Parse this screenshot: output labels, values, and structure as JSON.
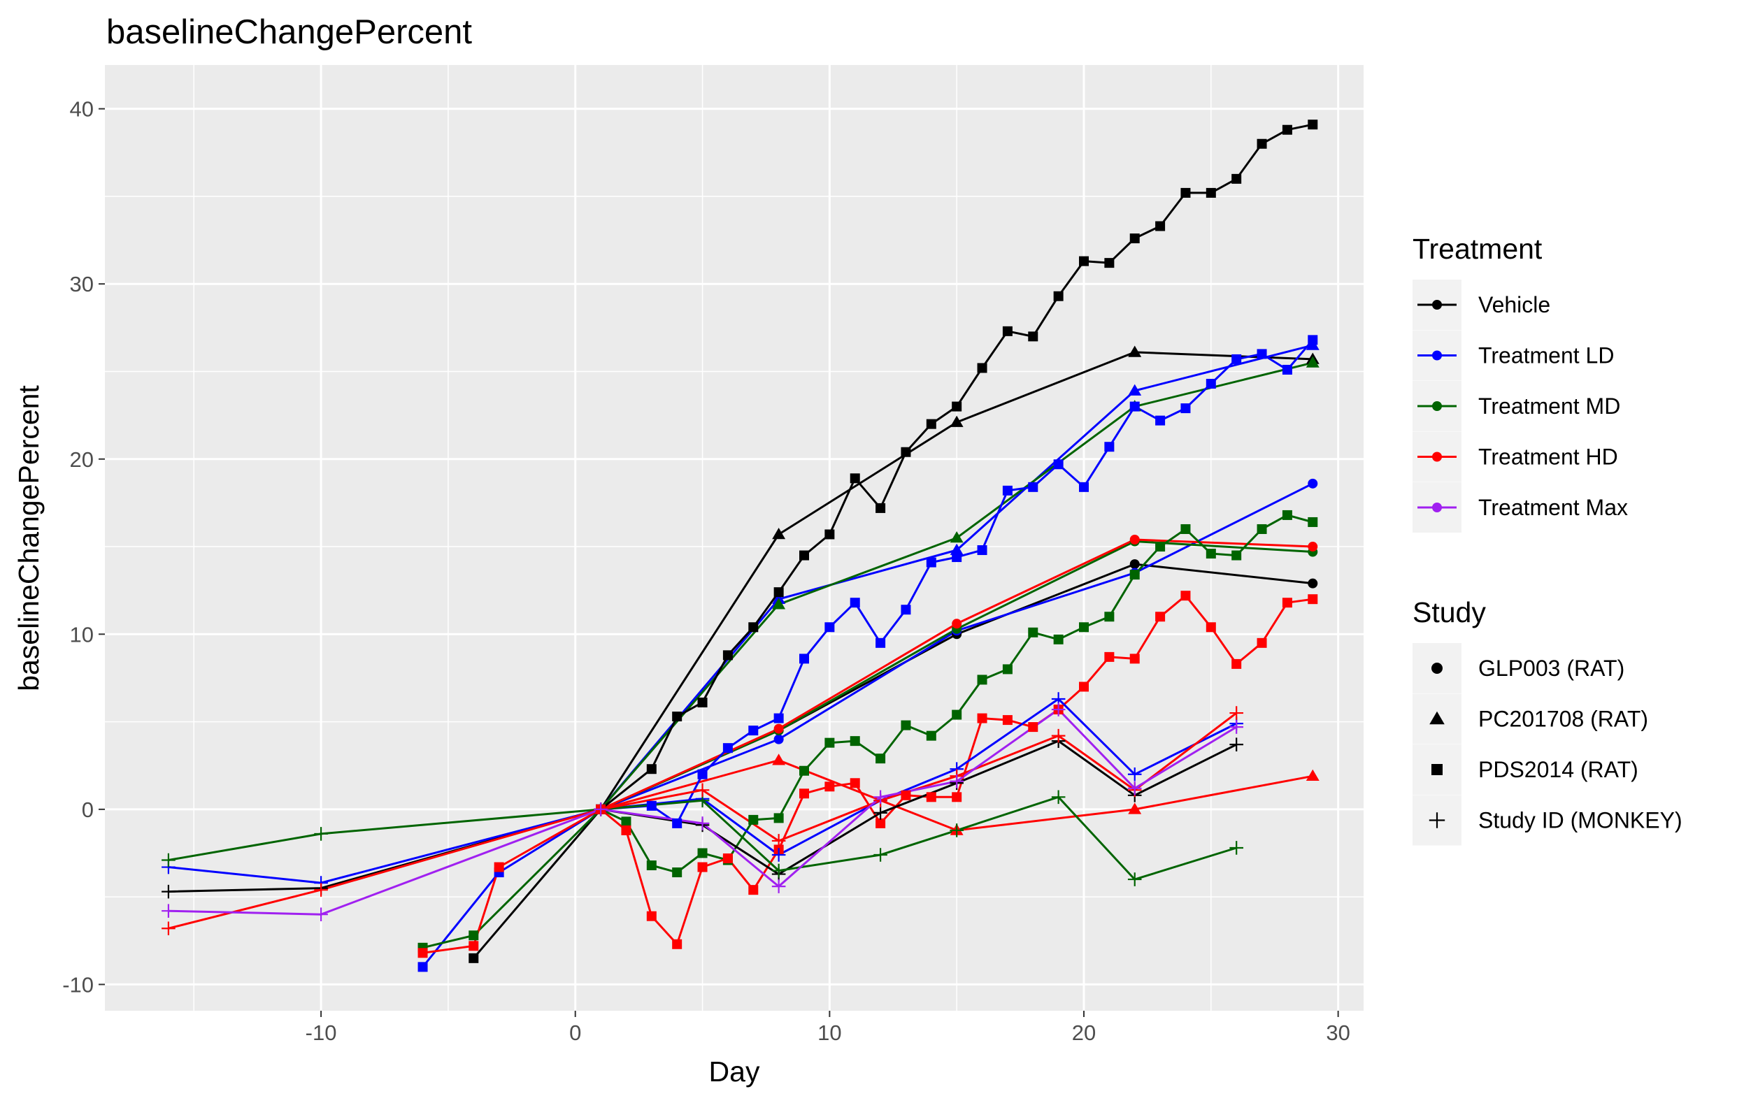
{
  "chart_data": {
    "type": "line",
    "title": "baselineChangePercent",
    "xlabel": "Day",
    "ylabel": "baselineChangePercent",
    "xlim": [
      -18.5,
      31
    ],
    "ylim": [
      -11.5,
      42.5
    ],
    "x_ticks": [
      -10,
      0,
      10,
      20,
      30
    ],
    "x_tick_labels": [
      "-10",
      "0",
      "10",
      "20",
      "30"
    ],
    "y_ticks": [
      -10,
      0,
      10,
      20,
      30,
      40
    ],
    "y_tick_labels": [
      "-10",
      "0",
      "10",
      "20",
      "30",
      "40"
    ],
    "grid": true,
    "legend_position": "right",
    "treatments": [
      {
        "name": "Vehicle",
        "color": "#000000"
      },
      {
        "name": "Treatment LD",
        "color": "#0000ff"
      },
      {
        "name": "Treatment MD",
        "color": "#006400"
      },
      {
        "name": "Treatment HD",
        "color": "#ff0000"
      },
      {
        "name": "Treatment Max",
        "color": "#a020f0"
      }
    ],
    "studies": [
      {
        "name": "GLP003 (RAT)",
        "shape": "circle"
      },
      {
        "name": "PC201708 (RAT)",
        "shape": "triangle"
      },
      {
        "name": "PDS2014 (RAT)",
        "shape": "square"
      },
      {
        "name": "Study ID (MONKEY)",
        "shape": "plus"
      }
    ],
    "legend_titles": {
      "treatment": "Treatment",
      "study": "Study"
    },
    "series": [
      {
        "treatment": "Vehicle",
        "study": "GLP003 (RAT)",
        "x": [
          1,
          8,
          15,
          22,
          29
        ],
        "y": [
          0,
          4.5,
          10,
          14,
          12.9
        ]
      },
      {
        "treatment": "Treatment LD",
        "study": "GLP003 (RAT)",
        "x": [
          1,
          8,
          15,
          22,
          29
        ],
        "y": [
          0,
          4,
          10.2,
          13.5,
          18.6
        ]
      },
      {
        "treatment": "Treatment MD",
        "study": "GLP003 (RAT)",
        "x": [
          1,
          8,
          15,
          22,
          29
        ],
        "y": [
          0,
          4.5,
          10.3,
          15.3,
          14.7
        ]
      },
      {
        "treatment": "Treatment HD",
        "study": "GLP003 (RAT)",
        "x": [
          1,
          8,
          15,
          22,
          29
        ],
        "y": [
          0,
          4.6,
          10.6,
          15.4,
          15
        ]
      },
      {
        "treatment": "Vehicle",
        "study": "PC201708 (RAT)",
        "x": [
          1,
          8,
          15,
          22,
          29
        ],
        "y": [
          0,
          15.7,
          22.1,
          26.1,
          25.7
        ]
      },
      {
        "treatment": "Treatment LD",
        "study": "PC201708 (RAT)",
        "x": [
          1,
          8,
          15,
          22,
          29
        ],
        "y": [
          0,
          12,
          14.8,
          23.9,
          26.5
        ]
      },
      {
        "treatment": "Treatment MD",
        "study": "PC201708 (RAT)",
        "x": [
          1,
          8,
          15,
          22,
          29
        ],
        "y": [
          0,
          11.7,
          15.5,
          23,
          25.5
        ]
      },
      {
        "treatment": "Treatment HD",
        "study": "PC201708 (RAT)",
        "x": [
          1,
          8,
          15,
          22,
          29
        ],
        "y": [
          0,
          2.8,
          -1.2,
          0,
          1.9
        ]
      },
      {
        "treatment": "Vehicle",
        "study": "PDS2014 (RAT)",
        "x": [
          -4,
          1,
          3,
          4,
          5,
          6,
          7,
          8,
          9,
          10,
          11,
          12,
          13,
          14,
          15,
          16,
          17,
          18,
          19,
          20,
          21,
          22,
          23,
          24,
          25,
          26,
          27,
          28,
          29
        ],
        "y": [
          -8.5,
          0,
          2.3,
          5.3,
          6.1,
          8.8,
          10.4,
          12.4,
          14.5,
          15.7,
          18.9,
          17.2,
          20.4,
          22,
          23,
          25.2,
          27.3,
          27,
          29.3,
          31.3,
          31.2,
          32.6,
          33.3,
          35.2,
          35.2,
          36,
          38,
          38.8,
          39.1
        ]
      },
      {
        "treatment": "Treatment LD",
        "study": "PDS2014 (RAT)",
        "x": [
          -6,
          -3,
          1,
          3,
          4,
          5,
          6,
          7,
          8,
          9,
          10,
          11,
          12,
          13,
          14,
          15,
          16,
          17,
          18,
          19,
          20,
          21,
          22,
          23,
          24,
          25,
          26,
          27,
          28,
          29
        ],
        "y": [
          -9,
          -3.6,
          0,
          0.2,
          -0.8,
          2,
          3.5,
          4.5,
          5.2,
          8.6,
          10.4,
          11.8,
          9.5,
          11.4,
          14.1,
          14.4,
          14.8,
          18.2,
          18.4,
          19.7,
          18.4,
          20.7,
          23,
          22.2,
          22.9,
          24.3,
          25.7,
          26,
          25.1,
          26.8
        ]
      },
      {
        "treatment": "Treatment MD",
        "study": "PDS2014 (RAT)",
        "x": [
          -6,
          -4,
          1,
          2,
          3,
          4,
          5,
          6,
          7,
          8,
          9,
          10,
          11,
          12,
          13,
          14,
          15,
          16,
          17,
          18,
          19,
          20,
          21,
          22,
          23,
          24,
          25,
          26,
          27,
          28,
          29
        ],
        "y": [
          -7.9,
          -7.2,
          0,
          -0.7,
          -3.2,
          -3.6,
          -2.5,
          -2.9,
          -0.6,
          -0.5,
          2.2,
          3.8,
          3.9,
          2.9,
          4.8,
          4.2,
          5.4,
          7.4,
          8,
          10.1,
          9.7,
          10.4,
          11,
          13.4,
          15,
          16,
          14.6,
          14.5,
          16,
          16.8,
          16.4
        ]
      },
      {
        "treatment": "Treatment HD",
        "study": "PDS2014 (RAT)",
        "x": [
          -6,
          -4,
          -3,
          1,
          2,
          3,
          4,
          5,
          6,
          7,
          8,
          9,
          10,
          11,
          12,
          13,
          14,
          15,
          16,
          17,
          18,
          19,
          20,
          21,
          22,
          23,
          24,
          25,
          26,
          27,
          28,
          29
        ],
        "y": [
          -8.2,
          -7.8,
          -3.3,
          0,
          -1.2,
          -6.1,
          -7.7,
          -3.3,
          -2.8,
          -4.6,
          -2.3,
          0.9,
          1.3,
          1.5,
          -0.8,
          0.8,
          0.7,
          0.7,
          5.2,
          5.1,
          4.7,
          5.7,
          7,
          8.7,
          8.6,
          11,
          12.2,
          10.4,
          8.3,
          9.5,
          11.8,
          12
        ]
      },
      {
        "treatment": "Vehicle",
        "study": "Study ID (MONKEY)",
        "x": [
          -16,
          -10,
          1,
          5,
          8,
          12,
          15,
          19,
          22,
          26
        ],
        "y": [
          -4.7,
          -4.5,
          0,
          -0.9,
          -3.7,
          -0.2,
          1.5,
          3.9,
          0.8,
          3.7
        ]
      },
      {
        "treatment": "Treatment LD",
        "study": "Study ID (MONKEY)",
        "x": [
          -16,
          -10,
          1,
          5,
          8,
          12,
          15,
          19,
          22,
          26
        ],
        "y": [
          -3.3,
          -4.2,
          0,
          0.6,
          -2.6,
          0.5,
          2.3,
          6.3,
          2,
          4.9
        ]
      },
      {
        "treatment": "Treatment MD",
        "study": "Study ID (MONKEY)",
        "x": [
          -16,
          -10,
          1,
          5,
          8,
          12,
          15,
          19,
          22,
          26
        ],
        "y": [
          -2.9,
          -1.4,
          0,
          0.5,
          -3.5,
          -2.6,
          -1.2,
          0.7,
          -4,
          -2.2
        ]
      },
      {
        "treatment": "Treatment HD",
        "study": "Study ID (MONKEY)",
        "x": [
          -16,
          -10,
          1,
          5,
          8,
          12,
          15,
          19,
          22,
          26
        ],
        "y": [
          -6.8,
          -4.6,
          0,
          1.1,
          -1.8,
          0.5,
          1.9,
          4.2,
          1.1,
          5.5
        ]
      },
      {
        "treatment": "Treatment Max",
        "study": "Study ID (MONKEY)",
        "x": [
          -16,
          -10,
          1,
          5,
          8,
          12,
          15,
          19,
          22,
          26
        ],
        "y": [
          -5.8,
          -6,
          0,
          -0.8,
          -4.4,
          0.7,
          1.6,
          5.7,
          1.2,
          4.7
        ]
      }
    ]
  }
}
